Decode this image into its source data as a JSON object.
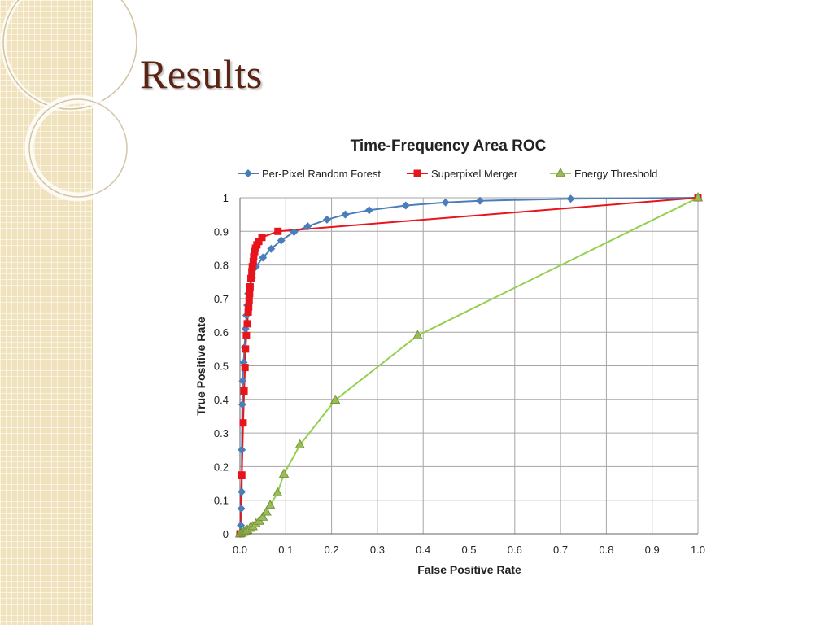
{
  "slide": {
    "title": "Results"
  },
  "chart_data": {
    "type": "line",
    "title": "Time-Frequency Area ROC",
    "xlabel": "False Positive Rate",
    "ylabel": "True Positive Rate",
    "xlim": [
      0,
      1
    ],
    "ylim": [
      0,
      1
    ],
    "xticks": [
      "0.0",
      "0.1",
      "0.2",
      "0.3",
      "0.4",
      "0.5",
      "0.6",
      "0.7",
      "0.8",
      "0.9",
      "1.0"
    ],
    "yticks": [
      "0",
      "0.1",
      "0.2",
      "0.3",
      "0.4",
      "0.5",
      "0.6",
      "0.7",
      "0.8",
      "0.9",
      "1"
    ],
    "grid": true,
    "legend": "top",
    "series": [
      {
        "name": "Per-Pixel Random Forest",
        "color": "#4a7ebb",
        "marker": "diamond",
        "points": [
          [
            0,
            0
          ],
          [
            0.002,
            0.025
          ],
          [
            0.003,
            0.075
          ],
          [
            0.004,
            0.125
          ],
          [
            0.004,
            0.25
          ],
          [
            0.005,
            0.385
          ],
          [
            0.006,
            0.455
          ],
          [
            0.008,
            0.51
          ],
          [
            0.01,
            0.555
          ],
          [
            0.012,
            0.61
          ],
          [
            0.014,
            0.65
          ],
          [
            0.016,
            0.68
          ],
          [
            0.018,
            0.715
          ],
          [
            0.022,
            0.735
          ],
          [
            0.027,
            0.762
          ],
          [
            0.035,
            0.795
          ],
          [
            0.05,
            0.822
          ],
          [
            0.068,
            0.848
          ],
          [
            0.09,
            0.873
          ],
          [
            0.118,
            0.898
          ],
          [
            0.148,
            0.915
          ],
          [
            0.19,
            0.935
          ],
          [
            0.23,
            0.95
          ],
          [
            0.282,
            0.963
          ],
          [
            0.362,
            0.977
          ],
          [
            0.449,
            0.986
          ],
          [
            0.524,
            0.991
          ],
          [
            0.722,
            0.997
          ],
          [
            1.0,
            1.0
          ]
        ]
      },
      {
        "name": "Superpixel Merger",
        "color": "#e8141c",
        "marker": "square",
        "points": [
          [
            0,
            0
          ],
          [
            0.004,
            0.175
          ],
          [
            0.007,
            0.33
          ],
          [
            0.009,
            0.425
          ],
          [
            0.011,
            0.495
          ],
          [
            0.012,
            0.55
          ],
          [
            0.014,
            0.59
          ],
          [
            0.016,
            0.625
          ],
          [
            0.018,
            0.66
          ],
          [
            0.019,
            0.675
          ],
          [
            0.02,
            0.695
          ],
          [
            0.021,
            0.715
          ],
          [
            0.022,
            0.735
          ],
          [
            0.024,
            0.76
          ],
          [
            0.026,
            0.78
          ],
          [
            0.027,
            0.795
          ],
          [
            0.029,
            0.81
          ],
          [
            0.03,
            0.825
          ],
          [
            0.032,
            0.84
          ],
          [
            0.034,
            0.85
          ],
          [
            0.037,
            0.86
          ],
          [
            0.041,
            0.87
          ],
          [
            0.048,
            0.882
          ],
          [
            0.083,
            0.9
          ],
          [
            1.0,
            1.0
          ]
        ]
      },
      {
        "name": "Energy Threshold",
        "color": "#92d050",
        "marker": "triangle",
        "points": [
          [
            0,
            0
          ],
          [
            0.004,
            0.002
          ],
          [
            0.008,
            0.005
          ],
          [
            0.012,
            0.008
          ],
          [
            0.016,
            0.012
          ],
          [
            0.022,
            0.017
          ],
          [
            0.028,
            0.022
          ],
          [
            0.035,
            0.03
          ],
          [
            0.042,
            0.038
          ],
          [
            0.05,
            0.05
          ],
          [
            0.058,
            0.065
          ],
          [
            0.066,
            0.085
          ],
          [
            0.082,
            0.122
          ],
          [
            0.096,
            0.178
          ],
          [
            0.131,
            0.265
          ],
          [
            0.208,
            0.398
          ],
          [
            0.388,
            0.59
          ],
          [
            1.0,
            1.0
          ]
        ]
      }
    ]
  }
}
